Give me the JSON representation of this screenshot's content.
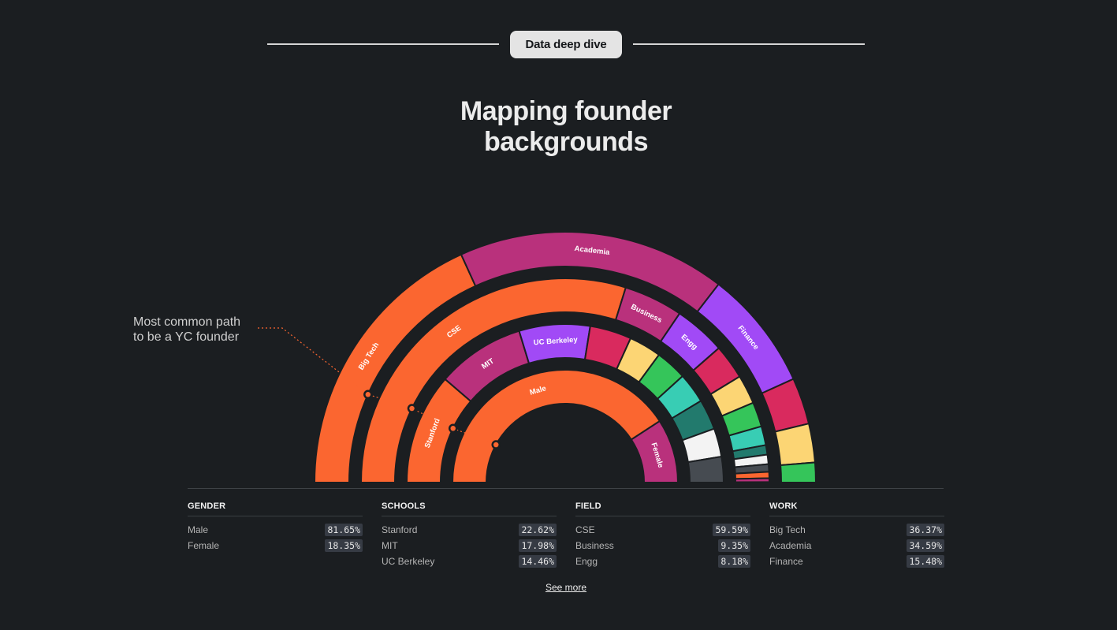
{
  "badge": "Data deep dive",
  "title_lines": [
    "Mapping founder",
    "backgrounds"
  ],
  "callout_lines": [
    "Most common path",
    "to be a YC founder"
  ],
  "chart_data": {
    "type": "sunburst-semicircle",
    "rings": [
      {
        "name": "GENDER",
        "segments": [
          {
            "label": "Male",
            "value": 81.65,
            "color": "#fb6630"
          },
          {
            "label": "Female",
            "value": 18.35,
            "color": "#b9317c"
          }
        ]
      },
      {
        "name": "SCHOOLS",
        "segments": [
          {
            "label": "Stanford",
            "value": 22.62,
            "color": "#fb6630"
          },
          {
            "label": "MIT",
            "value": 17.98,
            "color": "#b9317c"
          },
          {
            "label": "UC Berkeley",
            "value": 14.46,
            "color": "#a14af6"
          },
          {
            "label": "",
            "value": 8.5,
            "color": "#d92a5e"
          },
          {
            "label": "",
            "value": 6.6,
            "color": "#fcd574"
          },
          {
            "label": "",
            "value": 6.4,
            "color": "#35c55a"
          },
          {
            "label": "",
            "value": 6.2,
            "color": "#38cdb4"
          },
          {
            "label": "",
            "value": 6.2,
            "color": "#227a6d"
          },
          {
            "label": "",
            "value": 5.8,
            "color": "#f3f3f3"
          },
          {
            "label": "",
            "value": 5.24,
            "color": "#464b51"
          }
        ]
      },
      {
        "name": "FIELD",
        "segments": [
          {
            "label": "CSE",
            "value": 59.59,
            "color": "#fb6630"
          },
          {
            "label": "Business",
            "value": 9.35,
            "color": "#b9317c"
          },
          {
            "label": "Engg",
            "value": 8.18,
            "color": "#a14af6"
          },
          {
            "label": "",
            "value": 5.5,
            "color": "#d92a5e"
          },
          {
            "label": "",
            "value": 4.6,
            "color": "#fcd574"
          },
          {
            "label": "",
            "value": 3.9,
            "color": "#35c55a"
          },
          {
            "label": "",
            "value": 3.0,
            "color": "#38cdb4"
          },
          {
            "label": "",
            "value": 1.5,
            "color": "#227a6d"
          },
          {
            "label": "",
            "value": 1.5,
            "color": "#f3f3f3"
          },
          {
            "label": "",
            "value": 1.2,
            "color": "#464b51"
          },
          {
            "label": "",
            "value": 1.0,
            "color": "#fb6630"
          },
          {
            "label": "",
            "value": 0.6,
            "color": "#b9317c"
          },
          {
            "label": "",
            "value": 0.08,
            "color": "#a14af6"
          }
        ]
      },
      {
        "name": "WORK",
        "segments": [
          {
            "label": "Big Tech",
            "value": 36.37,
            "color": "#fb6630"
          },
          {
            "label": "Academia",
            "value": 34.59,
            "color": "#b9317c"
          },
          {
            "label": "Finance",
            "value": 15.48,
            "color": "#a14af6"
          },
          {
            "label": "",
            "value": 6.0,
            "color": "#d92a5e"
          },
          {
            "label": "",
            "value": 5.0,
            "color": "#fcd574"
          },
          {
            "label": "",
            "value": 2.56,
            "color": "#35c55a"
          }
        ]
      }
    ]
  },
  "stats": [
    {
      "header": "GENDER",
      "rows": [
        {
          "label": "Male",
          "value": "81.65%"
        },
        {
          "label": "Female",
          "value": "18.35%"
        }
      ]
    },
    {
      "header": "SCHOOLS",
      "rows": [
        {
          "label": "Stanford",
          "value": "22.62%"
        },
        {
          "label": "MIT",
          "value": "17.98%"
        },
        {
          "label": "UC Berkeley",
          "value": "14.46%"
        }
      ]
    },
    {
      "header": "FIELD",
      "rows": [
        {
          "label": "CSE",
          "value": "59.59%"
        },
        {
          "label": "Business",
          "value": "9.35%"
        },
        {
          "label": "Engg",
          "value": "8.18%"
        }
      ]
    },
    {
      "header": "WORK",
      "rows": [
        {
          "label": "Big Tech",
          "value": "36.37%"
        },
        {
          "label": "Academia",
          "value": "34.59%"
        },
        {
          "label": "Finance",
          "value": "15.48%"
        }
      ]
    }
  ],
  "see_more": "See more"
}
